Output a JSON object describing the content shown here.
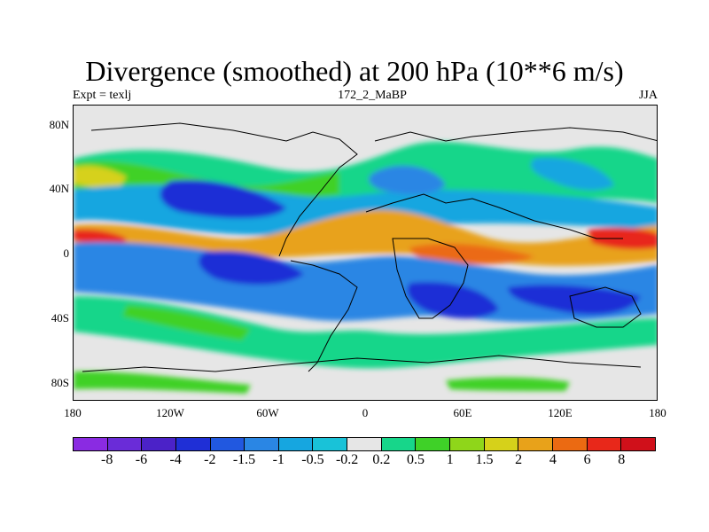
{
  "title": "Divergence (smoothed) at 200 hPa (10**6 m/s)",
  "subtitle_left": "Expt = texlj",
  "subtitle_center": "172_2_MaBP",
  "subtitle_right": "JJA",
  "axes": {
    "lat_labels": [
      "80N",
      "40N",
      "0",
      "40S",
      "80S"
    ],
    "lon_labels": [
      "180",
      "120W",
      "60W",
      "0",
      "60E",
      "120E",
      "180"
    ]
  },
  "colorbar": {
    "labels": [
      "-8",
      "-6",
      "-4",
      "-2",
      "-1.5",
      "-1",
      "-0.5",
      "-0.2",
      "0.2",
      "0.5",
      "1",
      "1.5",
      "2",
      "4",
      "6",
      "8"
    ],
    "colors": [
      "#8a2be2",
      "#6a2cd8",
      "#4b22c8",
      "#1f2fd6",
      "#2158e0",
      "#2a86e4",
      "#16a6e0",
      "#19c2d8",
      "#e6e6e6",
      "#17d68a",
      "#3fd128",
      "#8fd61a",
      "#d6d11a",
      "#e8a21a",
      "#eb6a12",
      "#e8281a",
      "#d0101a"
    ]
  },
  "map_colors": {
    "background": "#e6e6e6",
    "neg_dark": "#1f2fd6",
    "neg_mid": "#2a86e4",
    "neg_light": "#16a6e0",
    "neg_faint": "#19c2d8",
    "pos_faint": "#17d68a",
    "pos_light": "#3fd128",
    "pos_mid": "#8fd61a",
    "pos_yellow": "#d6d11a",
    "pos_orange": "#e8a21a",
    "pos_dark": "#eb6a12",
    "pos_red": "#e8281a"
  }
}
